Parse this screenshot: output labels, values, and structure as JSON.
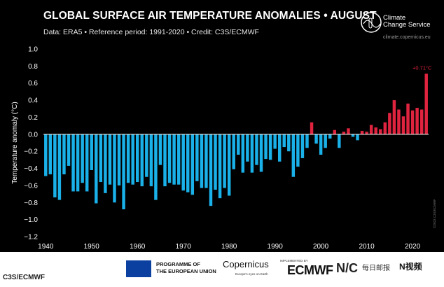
{
  "header": {
    "title": "GLOBAL SURFACE AIR TEMPERATURE ANOMALIES • AUGUST",
    "subtitle": "Data: ERA5 • Reference period: 1991-2020 • Credit: C3S/ECMWF"
  },
  "logo": {
    "name": "Climate Change Service",
    "line1": "Climate",
    "line2": "Change Service",
    "url": "climate.copernicus.eu"
  },
  "chart_data": {
    "type": "bar",
    "title": "GLOBAL SURFACE AIR TEMPERATURE ANOMALIES • AUGUST",
    "ylabel": "Temperature anomaly (°C)",
    "xlabel": "",
    "ylim": [
      -1.2,
      1.0
    ],
    "y_ticks": [
      "1.0",
      "0.8",
      "0.6",
      "0.4",
      "0.2",
      "0.0",
      "−0.2",
      "−0.4",
      "−0.6",
      "−0.8",
      "−1.0",
      "−1.2"
    ],
    "y_tick_values": [
      1.0,
      0.8,
      0.6,
      0.4,
      0.2,
      0.0,
      -0.2,
      -0.4,
      -0.6,
      -0.8,
      -1.0,
      -1.2
    ],
    "x_ticks": [
      "1940",
      "1950",
      "1960",
      "1970",
      "1980",
      "1990",
      "2000",
      "2010",
      "2020"
    ],
    "x_tick_values": [
      1940,
      1950,
      1960,
      1970,
      1980,
      1990,
      2000,
      2010,
      2020
    ],
    "grid": false,
    "colors": {
      "negative": "#1ab0e8",
      "positive": "#e0243f",
      "background": "#000000",
      "axis": "#ffffff"
    },
    "annotation": {
      "text": "+0.71°C",
      "year": 2023
    },
    "years": [
      1940,
      1941,
      1942,
      1943,
      1944,
      1945,
      1946,
      1947,
      1948,
      1949,
      1950,
      1951,
      1952,
      1953,
      1954,
      1955,
      1956,
      1957,
      1958,
      1959,
      1960,
      1961,
      1962,
      1963,
      1964,
      1965,
      1966,
      1967,
      1968,
      1969,
      1970,
      1971,
      1972,
      1973,
      1974,
      1975,
      1976,
      1977,
      1978,
      1979,
      1980,
      1981,
      1982,
      1983,
      1984,
      1985,
      1986,
      1987,
      1988,
      1989,
      1990,
      1991,
      1992,
      1993,
      1994,
      1995,
      1996,
      1997,
      1998,
      1999,
      2000,
      2001,
      2002,
      2003,
      2004,
      2005,
      2006,
      2007,
      2008,
      2009,
      2010,
      2011,
      2012,
      2013,
      2014,
      2015,
      2016,
      2017,
      2018,
      2019,
      2020,
      2021,
      2022,
      2023
    ],
    "values": [
      -0.49,
      -0.47,
      -0.74,
      -0.77,
      -0.47,
      -0.37,
      -0.67,
      -0.67,
      -0.57,
      -0.67,
      -0.42,
      -0.81,
      -0.56,
      -0.69,
      -0.59,
      -0.8,
      -0.6,
      -0.88,
      -0.57,
      -0.59,
      -0.56,
      -0.61,
      -0.5,
      -0.61,
      -0.77,
      -0.36,
      -0.61,
      -0.57,
      -0.59,
      -0.59,
      -0.66,
      -0.68,
      -0.71,
      -0.55,
      -0.63,
      -0.63,
      -0.84,
      -0.65,
      -0.75,
      -0.63,
      -0.72,
      -0.41,
      -0.24,
      -0.45,
      -0.32,
      -0.45,
      -0.36,
      -0.44,
      -0.29,
      -0.3,
      -0.17,
      -0.32,
      -0.15,
      -0.2,
      -0.5,
      -0.38,
      -0.28,
      -0.16,
      0.14,
      -0.11,
      -0.24,
      -0.16,
      -0.05,
      0.05,
      -0.16,
      0.03,
      0.07,
      -0.03,
      -0.07,
      0.04,
      0.03,
      0.11,
      0.08,
      0.06,
      0.14,
      0.25,
      0.4,
      0.29,
      0.21,
      0.36,
      0.28,
      0.31,
      0.29,
      0.71
    ]
  },
  "side_note": "©2023 C3S/ECMWF",
  "footer": {
    "programme_line1": "PROGRAMME OF",
    "programme_line2": "THE EUROPEAN UNION",
    "copernicus": "opernicus",
    "copernicus_sub": "Europe's eyes on Earth",
    "implemented_by": "IMPLEMENTED BY",
    "ecmwf": "ECMWF",
    "extra_logo": "N/C",
    "chinese_text": "每日邮报",
    "nvideo": "N视频",
    "credit": "C3S/ECMWF"
  }
}
